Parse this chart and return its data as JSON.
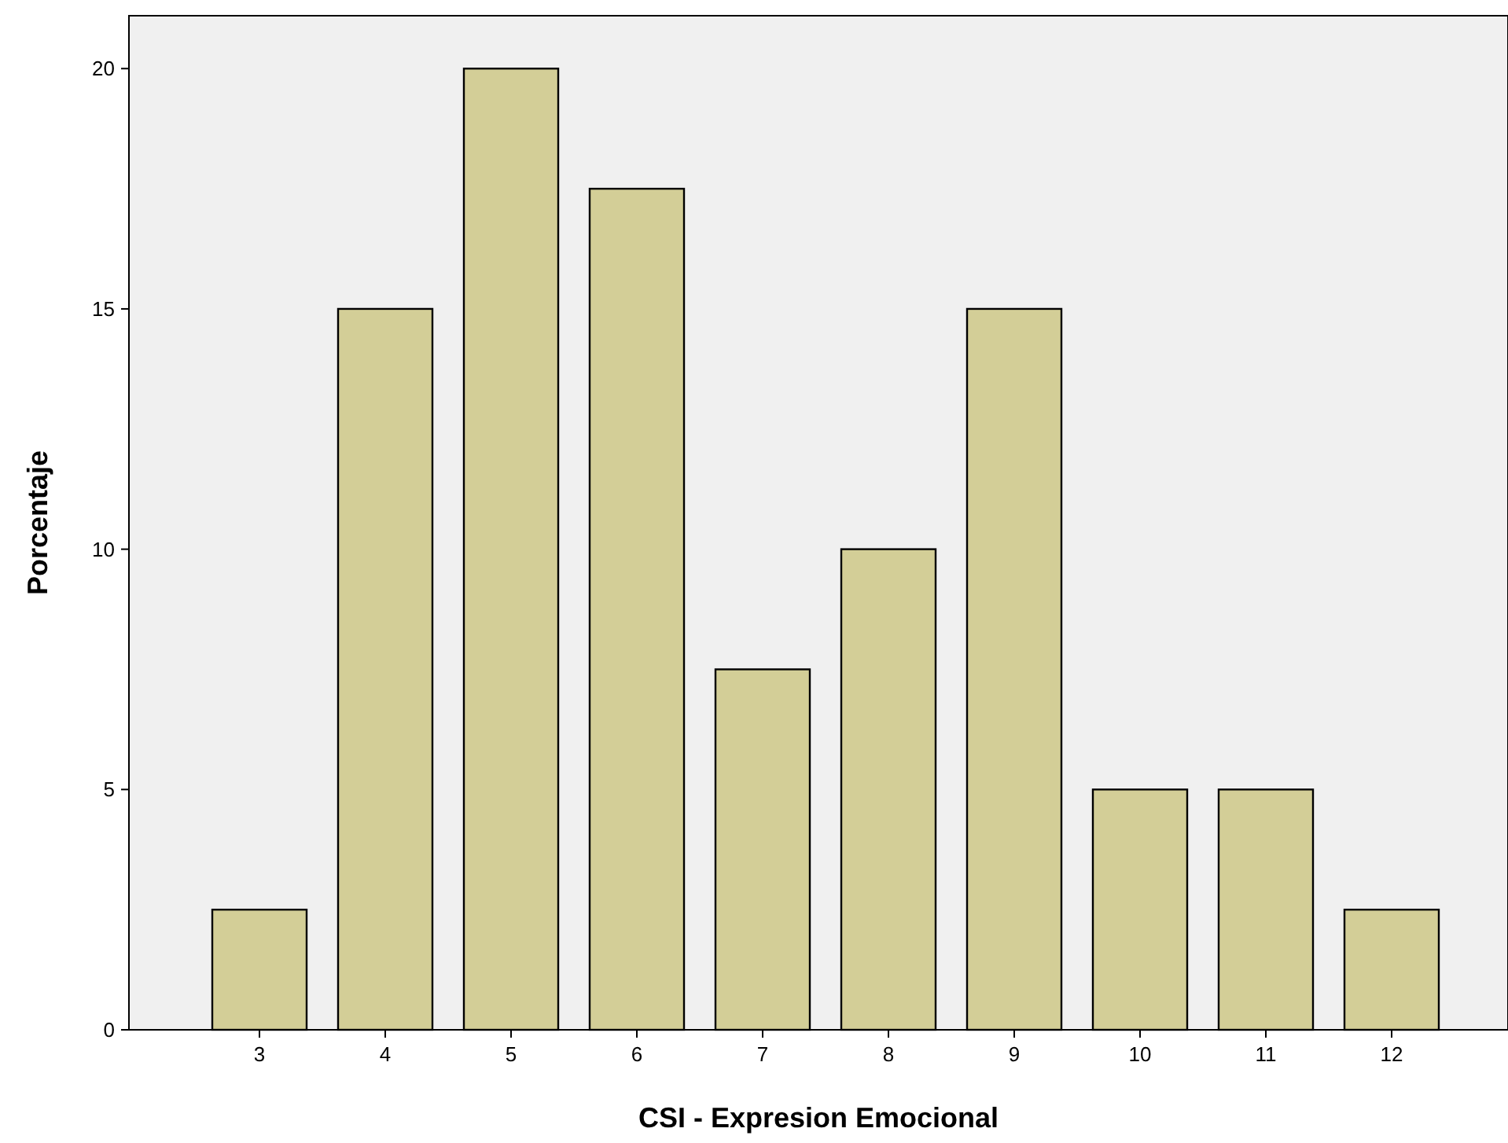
{
  "chart_data": {
    "type": "bar",
    "xlabel": "CSI - Expresion Emocional",
    "ylabel": "Porcentaje",
    "categories": [
      "3",
      "4",
      "5",
      "6",
      "7",
      "8",
      "9",
      "10",
      "11",
      "12"
    ],
    "values": [
      2.5,
      15,
      20,
      17.5,
      7.5,
      10,
      15,
      5,
      5,
      2.5
    ],
    "color": "#d3ce97",
    "ylim": [
      0,
      21.1
    ],
    "yticks": [
      0,
      5,
      10,
      15,
      20
    ],
    "grid": false
  }
}
